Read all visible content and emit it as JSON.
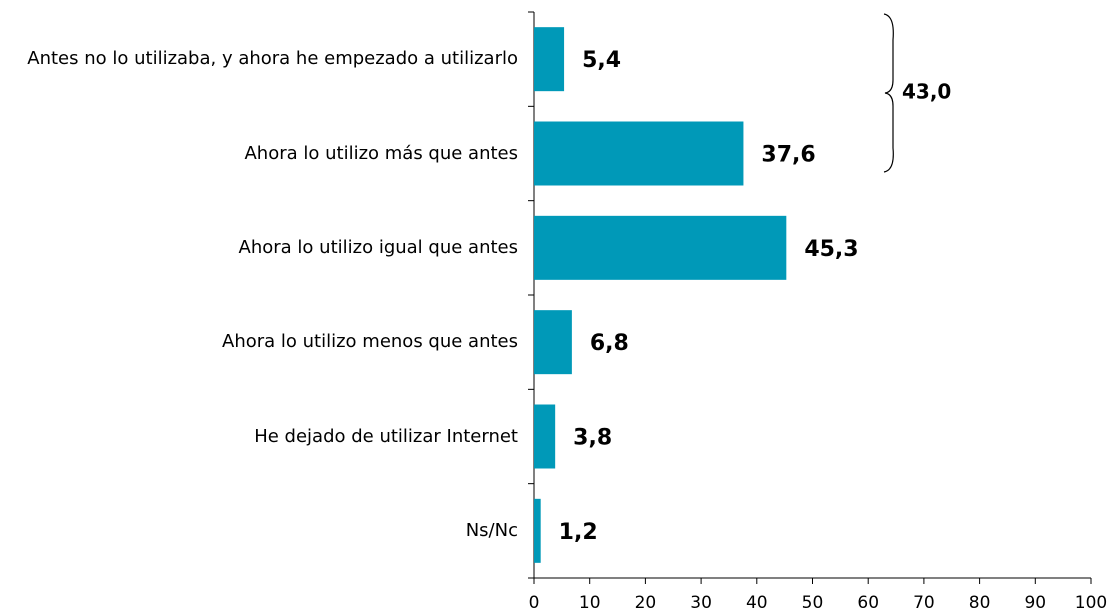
{
  "chart_data": {
    "type": "barh",
    "categories": [
      "Antes no lo utilizaba, y ahora he empezado a utilizarlo",
      "Ahora lo utilizo más que antes",
      "Ahora lo utilizo igual que antes",
      "Ahora lo utilizo menos que antes",
      "He dejado de utilizar Internet",
      "Ns/Nc"
    ],
    "values": [
      5.4,
      37.6,
      45.3,
      6.8,
      3.8,
      1.2
    ],
    "value_labels": [
      "5,4",
      "37,6",
      "45,3",
      "6,8",
      "3,8",
      "1,2"
    ],
    "color": "#0099b8",
    "xlim": [
      0,
      100
    ],
    "xticks": [
      0,
      10,
      20,
      30,
      40,
      50,
      60,
      70,
      80,
      90,
      100
    ],
    "annotation": "43,0"
  }
}
